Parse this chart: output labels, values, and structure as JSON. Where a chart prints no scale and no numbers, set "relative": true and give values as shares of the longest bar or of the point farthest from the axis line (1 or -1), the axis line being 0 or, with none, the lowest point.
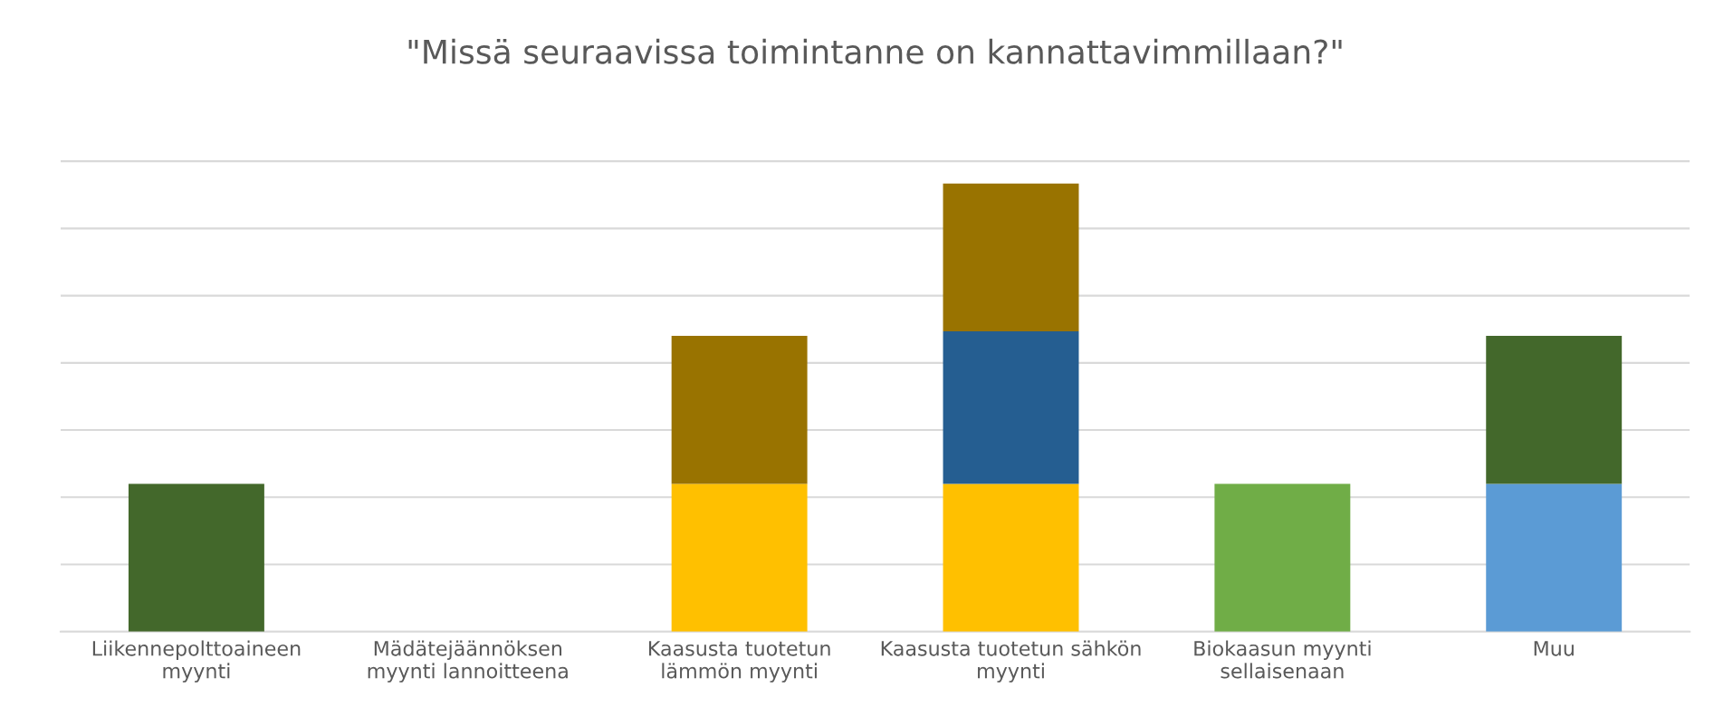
{
  "chart_data": {
    "type": "bar",
    "title": "\"Missä seuraavissa toimintanne on kannattavimmillaan?\"",
    "categories": [
      "Liikennepolttoaineen\nmyynti",
      "Mädätejäännöksen\nmyynti lannoitteena",
      "Kaasusta tuotetun\nlämmön myynti",
      "Kaasusta tuotetun sähkön\nmyynti",
      "Biokaasun myynti\nsellaisenaan",
      "Muu"
    ],
    "stacked": true,
    "relative": true,
    "grid": "y",
    "legend": false,
    "series": [
      {
        "color": "#ffc000",
        "values": [
          null,
          null,
          0.33,
          0.33,
          null,
          null
        ]
      },
      {
        "color": "#70ad47",
        "values": [
          null,
          null,
          null,
          null,
          0.33,
          null
        ]
      },
      {
        "color": "#5b9bd5",
        "values": [
          null,
          null,
          null,
          null,
          null,
          0.33
        ]
      },
      {
        "color": "#43682b",
        "values": [
          0.33,
          null,
          null,
          null,
          null,
          0.33
        ]
      },
      {
        "color": "#255e91",
        "values": [
          null,
          null,
          null,
          0.34,
          null,
          null
        ]
      },
      {
        "color": "#997300",
        "values": [
          null,
          null,
          0.33,
          0.33,
          null,
          null
        ]
      }
    ]
  }
}
